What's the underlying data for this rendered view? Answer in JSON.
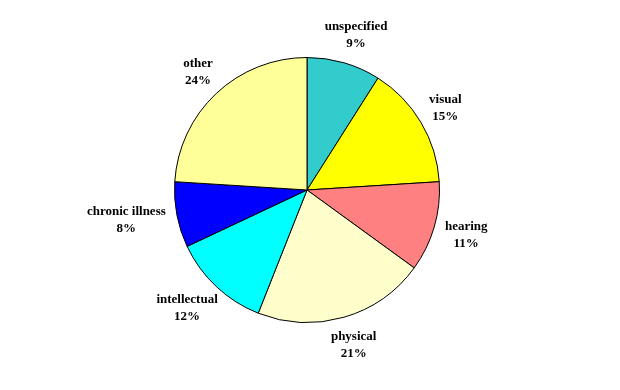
{
  "chart_data": {
    "type": "pie",
    "categories": [
      "unspecified",
      "visual",
      "hearing",
      "physical",
      "intellectual",
      "chronic illness",
      "other"
    ],
    "values": [
      9,
      15,
      11,
      21,
      12,
      8,
      24
    ],
    "value_labels": [
      "9%",
      "15%",
      "11%",
      "21%",
      "12%",
      "8%",
      "24%"
    ],
    "colors": [
      "#33cccc",
      "#ffff00",
      "#ff8080",
      "#ffffcc",
      "#00ffff",
      "#0000ff",
      "#ffff99"
    ],
    "data_labels": true
  }
}
